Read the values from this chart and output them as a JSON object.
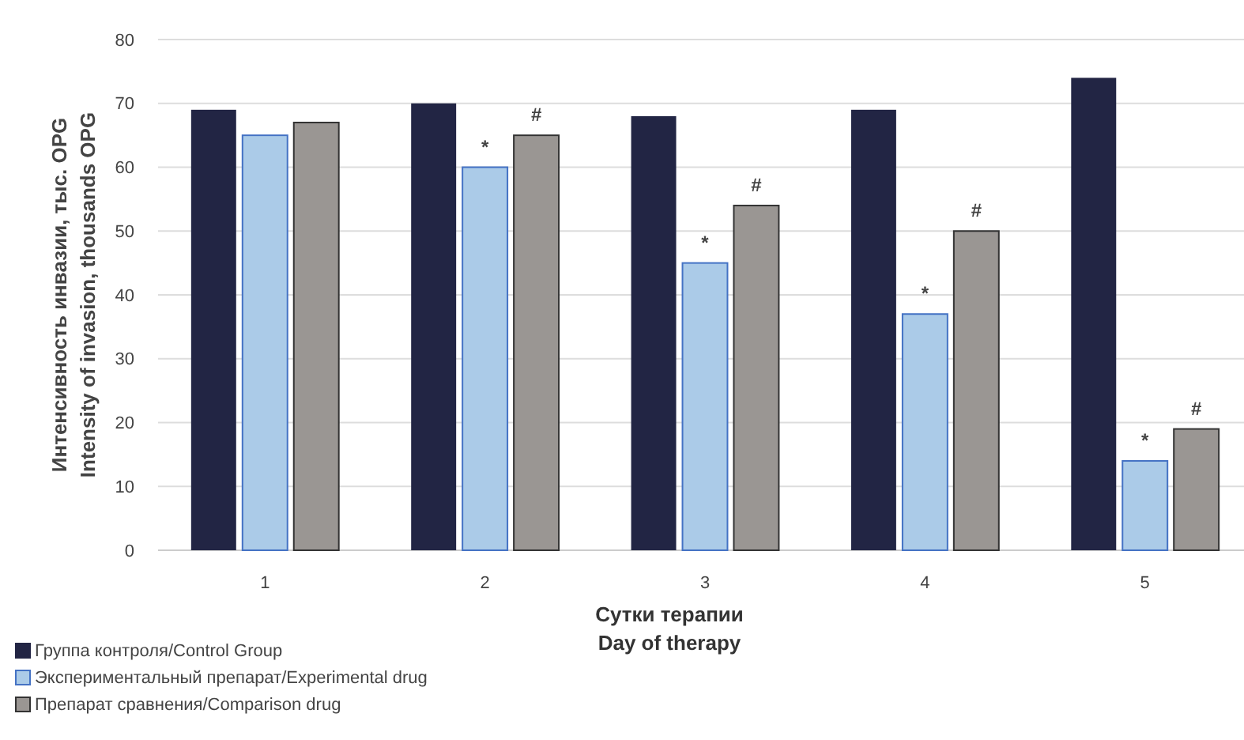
{
  "chart_data": {
    "type": "bar",
    "categories": [
      "1",
      "2",
      "3",
      "4",
      "5"
    ],
    "xlabel": "Сутки терапии\nDay of therapy",
    "ylabel": "Интенсивность инвазии, тыс. OPG\nIntensity of invasion, thousands  OPG",
    "series": [
      {
        "name": "Группа контроля/Control Group",
        "color": "#222544",
        "values": [
          69,
          70,
          68,
          69,
          74
        ]
      },
      {
        "name": "Экспериментальный препарат/Experimental drug",
        "color": "#abcbe8",
        "values": [
          65,
          60,
          45,
          37,
          14
        ],
        "value_labels": [
          null,
          "*",
          "*",
          "*",
          "*"
        ]
      },
      {
        "name": "Препарат сравнения/Comparison drug",
        "color": "#9a9693",
        "values": [
          67,
          65,
          54,
          50,
          19
        ],
        "value_labels": [
          null,
          "#",
          "#",
          "#",
          "#"
        ]
      }
    ],
    "ylim": [
      0,
      80
    ],
    "yticks": [
      0,
      10,
      20,
      30,
      40,
      50,
      60,
      70,
      80
    ],
    "grid": "y",
    "legend": "bottom left"
  }
}
